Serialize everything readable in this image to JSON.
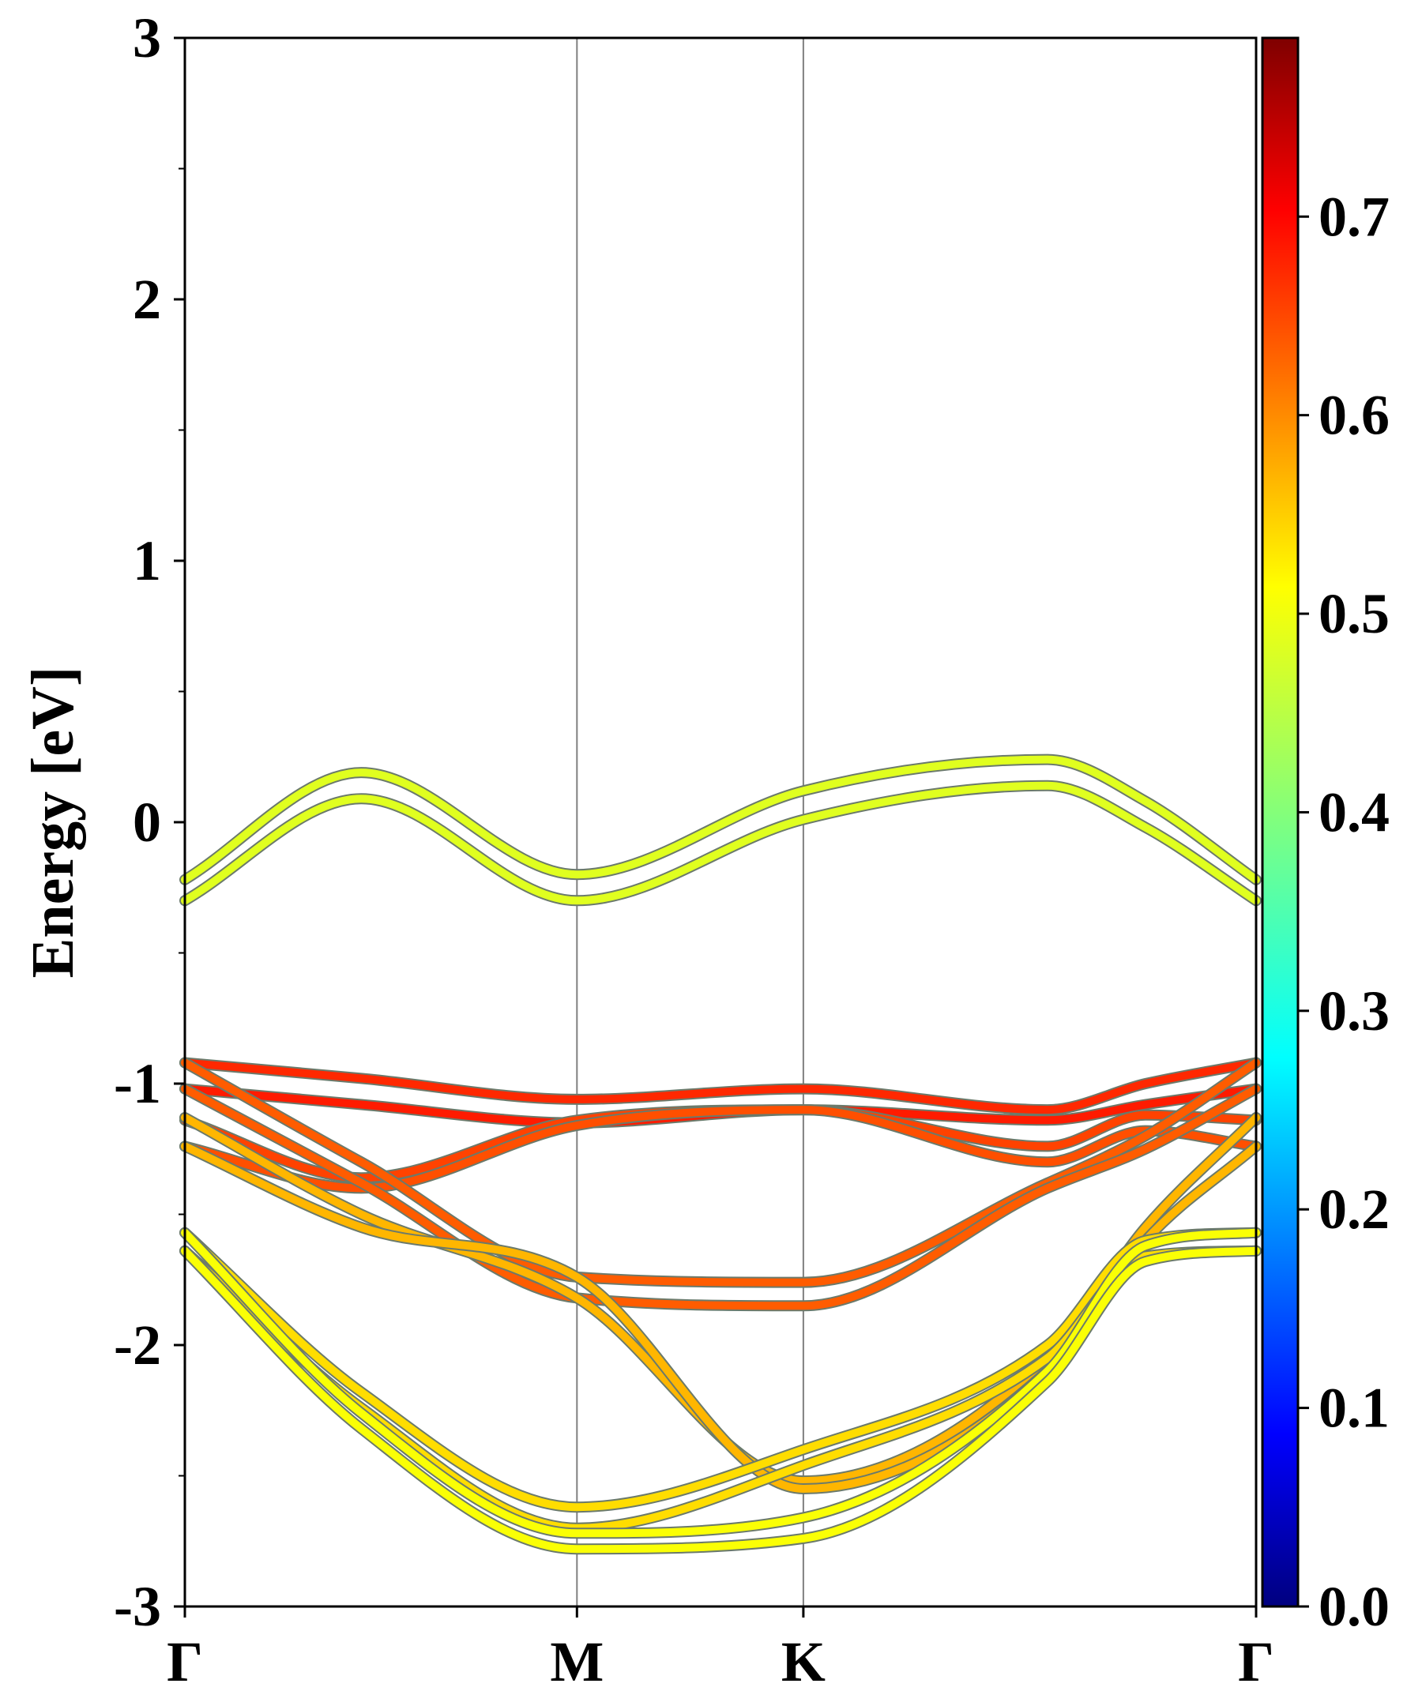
{
  "chart_data": {
    "type": "line",
    "title": "",
    "xlabel": "",
    "ylabel": "Energy [eV]",
    "ylim": [
      -3,
      3
    ],
    "y_ticks": [
      "3",
      "2",
      "1",
      "0",
      "-1",
      "-2",
      "-3"
    ],
    "y_tick_values": [
      3,
      2,
      1,
      0,
      -1,
      -2,
      -3
    ],
    "x_ticks": [
      "Γ",
      "M",
      "K",
      "Γ"
    ],
    "x_tick_positions": [
      0,
      1,
      1.5774,
      2.7321
    ],
    "colorbar": {
      "colormap": "jet",
      "range": [
        0.0,
        0.79
      ],
      "ticks": [
        "0.0",
        "0.1",
        "0.2",
        "0.3",
        "0.4",
        "0.5",
        "0.6",
        "0.7"
      ],
      "tick_values": [
        0.0,
        0.1,
        0.2,
        0.3,
        0.4,
        0.5,
        0.6,
        0.7
      ]
    },
    "grid": false,
    "k_path_columns": [
      "Γ",
      "M_mid",
      "M",
      "K",
      "K_mid",
      "Γ_near",
      "Γ"
    ],
    "k_path_x": [
      0,
      0.45,
      1,
      1.5774,
      2.2,
      2.45,
      2.7321
    ],
    "series": [
      {
        "energy": [
          -0.22,
          0.19,
          -0.2,
          0.12,
          0.24,
          0.08,
          -0.22
        ],
        "weight": 0.47
      },
      {
        "energy": [
          -0.3,
          0.09,
          -0.3,
          0.01,
          0.14,
          -0.02,
          -0.3
        ],
        "weight": 0.47
      },
      {
        "energy": [
          -0.92,
          -0.98,
          -1.06,
          -1.02,
          -1.1,
          -1.0,
          -0.92
        ],
        "weight": 0.66
      },
      {
        "energy": [
          -1.02,
          -1.08,
          -1.15,
          -1.1,
          -1.14,
          -1.08,
          -1.02
        ],
        "weight": 0.67
      },
      {
        "energy": [
          -1.14,
          -1.36,
          -1.14,
          -1.1,
          -1.24,
          -1.12,
          -1.14
        ],
        "weight": 0.64
      },
      {
        "energy": [
          -1.24,
          -1.4,
          -1.16,
          -1.1,
          -1.3,
          -1.18,
          -1.24
        ],
        "weight": 0.63
      },
      {
        "energy": [
          -0.92,
          -1.3,
          -1.74,
          -1.76,
          -1.38,
          -1.2,
          -0.92
        ],
        "weight": 0.62
      },
      {
        "energy": [
          -1.02,
          -1.38,
          -1.82,
          -1.85,
          -1.4,
          -1.25,
          -1.02
        ],
        "weight": 0.62
      },
      {
        "energy": [
          -1.13,
          -1.5,
          -1.82,
          -2.52,
          -2.05,
          -1.55,
          -1.13
        ],
        "weight": 0.55
      },
      {
        "energy": [
          -1.24,
          -1.55,
          -1.74,
          -2.55,
          -2.1,
          -1.6,
          -1.24
        ],
        "weight": 0.55
      },
      {
        "energy": [
          -1.57,
          -2.18,
          -2.62,
          -2.4,
          -2.0,
          -1.6,
          -1.57
        ],
        "weight": 0.52
      },
      {
        "energy": [
          -1.64,
          -2.24,
          -2.7,
          -2.46,
          -2.05,
          -1.66,
          -1.64
        ],
        "weight": 0.52
      },
      {
        "energy": [
          -1.57,
          -2.26,
          -2.72,
          -2.66,
          -2.1,
          -1.62,
          -1.57
        ],
        "weight": 0.49
      },
      {
        "energy": [
          -1.64,
          -2.32,
          -2.78,
          -2.74,
          -2.14,
          -1.68,
          -1.64
        ],
        "weight": 0.49
      }
    ]
  }
}
